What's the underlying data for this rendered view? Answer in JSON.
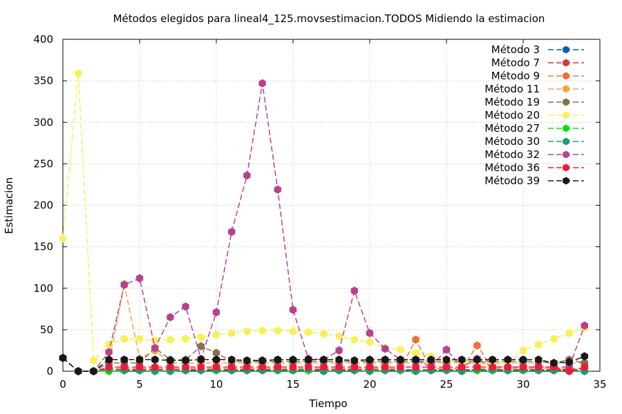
{
  "chart_data": {
    "type": "line",
    "title": "Métodos elegidos para lineal4_125.movsestimacion.TODOS Midiendo la estimacion",
    "xlabel": "Tiempo",
    "ylabel": "Estimacion",
    "xlim": [
      0,
      35
    ],
    "ylim": [
      0,
      400
    ],
    "xticks": [
      0,
      5,
      10,
      15,
      20,
      25,
      30,
      35
    ],
    "yticks": [
      0,
      50,
      100,
      150,
      200,
      250,
      300,
      350,
      400
    ],
    "grid": true,
    "legend_position": "top-right",
    "x": [
      0,
      1,
      2,
      3,
      4,
      5,
      6,
      7,
      8,
      9,
      10,
      11,
      12,
      13,
      14,
      15,
      16,
      17,
      18,
      19,
      20,
      21,
      22,
      23,
      24,
      25,
      26,
      27,
      28,
      29,
      30,
      31,
      32,
      33,
      34
    ],
    "series": [
      {
        "name": "Método 3",
        "color": "#0b5db0",
        "values": [
          16,
          0,
          0,
          2,
          1,
          1,
          1,
          1,
          1,
          1,
          1,
          1,
          1,
          1,
          1,
          1,
          1,
          1,
          1,
          1,
          1,
          1,
          1,
          1,
          1,
          1,
          1,
          1,
          1,
          1,
          1,
          1,
          1,
          1,
          1
        ]
      },
      {
        "name": "Método 7",
        "color": "#c83c3c",
        "values": [
          16,
          0,
          0,
          2,
          2,
          2,
          2,
          2,
          2,
          2,
          2,
          2,
          2,
          2,
          2,
          2,
          2,
          2,
          2,
          2,
          2,
          2,
          2,
          2,
          2,
          2,
          2,
          2,
          2,
          2,
          2,
          2,
          2,
          2,
          2
        ]
      },
      {
        "name": "Método 9",
        "color": "#f07030",
        "values": [
          16,
          0,
          0,
          3,
          3,
          3,
          3,
          3,
          3,
          3,
          3,
          3,
          3,
          3,
          3,
          3,
          3,
          3,
          3,
          3,
          3,
          3,
          3,
          38,
          3,
          3,
          3,
          31,
          3,
          3,
          3,
          3,
          3,
          3,
          3
        ]
      },
      {
        "name": "Método 11",
        "color": "#f7a040",
        "values": [
          16,
          0,
          0,
          10,
          105,
          15,
          25,
          10,
          10,
          10,
          10,
          10,
          10,
          10,
          10,
          10,
          10,
          10,
          10,
          10,
          10,
          10,
          10,
          10,
          10,
          10,
          10,
          10,
          10,
          10,
          10,
          10,
          10,
          10,
          10
        ]
      },
      {
        "name": "Método 19",
        "color": "#857050",
        "values": [
          16,
          0,
          0,
          10,
          10,
          10,
          28,
          14,
          14,
          30,
          22,
          12,
          12,
          12,
          12,
          12,
          12,
          12,
          12,
          12,
          12,
          12,
          12,
          12,
          12,
          12,
          12,
          12,
          12,
          12,
          12,
          12,
          10,
          14,
          10
        ]
      },
      {
        "name": "Método 20",
        "color": "#f8f058",
        "values": [
          160,
          359,
          13,
          32,
          39,
          39,
          37,
          38,
          39,
          41,
          44,
          46,
          48,
          49,
          49,
          48,
          47,
          45,
          42,
          38,
          35,
          28,
          26,
          22,
          18,
          14,
          10,
          8,
          8,
          10,
          25,
          32,
          39,
          46,
          52
        ]
      },
      {
        "name": "Método 27",
        "color": "#10dd10",
        "values": [
          16,
          0,
          0,
          0,
          1,
          1,
          1,
          1,
          1,
          1,
          1,
          1,
          1,
          1,
          1,
          1,
          1,
          1,
          1,
          1,
          1,
          1,
          1,
          1,
          1,
          1,
          1,
          1,
          1,
          1,
          1,
          1,
          1,
          1,
          1
        ]
      },
      {
        "name": "Método 30",
        "color": "#1aa070",
        "values": [
          16,
          0,
          0,
          3,
          1,
          1,
          0,
          0,
          1,
          1,
          2,
          1,
          1,
          1,
          2,
          1,
          3,
          0,
          1,
          1,
          0,
          1,
          2,
          0,
          1,
          2,
          0,
          3,
          2,
          1,
          2,
          1,
          1,
          1,
          0
        ]
      },
      {
        "name": "Método 32",
        "color": "#b8408c",
        "values": [
          16,
          0,
          0,
          23,
          104,
          112,
          28,
          65,
          78,
          15,
          71,
          168,
          236,
          347,
          219,
          74,
          15,
          14,
          25,
          97,
          46,
          27,
          14,
          14,
          5,
          26,
          5,
          15,
          5,
          5,
          5,
          5,
          5,
          5,
          55
        ]
      },
      {
        "name": "Método 36",
        "color": "#f01840",
        "values": [
          16,
          0,
          0,
          5,
          5,
          5,
          5,
          5,
          5,
          5,
          5,
          5,
          5,
          5,
          5,
          5,
          5,
          5,
          5,
          5,
          5,
          5,
          5,
          5,
          5,
          5,
          5,
          5,
          5,
          5,
          5,
          5,
          5,
          0,
          5
        ]
      },
      {
        "name": "Método 39",
        "color": "#181818",
        "values": [
          16,
          0,
          0,
          14,
          14,
          14,
          14,
          13,
          13,
          14,
          14,
          14,
          13,
          13,
          14,
          14,
          14,
          14,
          14,
          13,
          14,
          14,
          14,
          14,
          14,
          14,
          14,
          14,
          14,
          14,
          14,
          14,
          10,
          11,
          18
        ]
      }
    ]
  }
}
